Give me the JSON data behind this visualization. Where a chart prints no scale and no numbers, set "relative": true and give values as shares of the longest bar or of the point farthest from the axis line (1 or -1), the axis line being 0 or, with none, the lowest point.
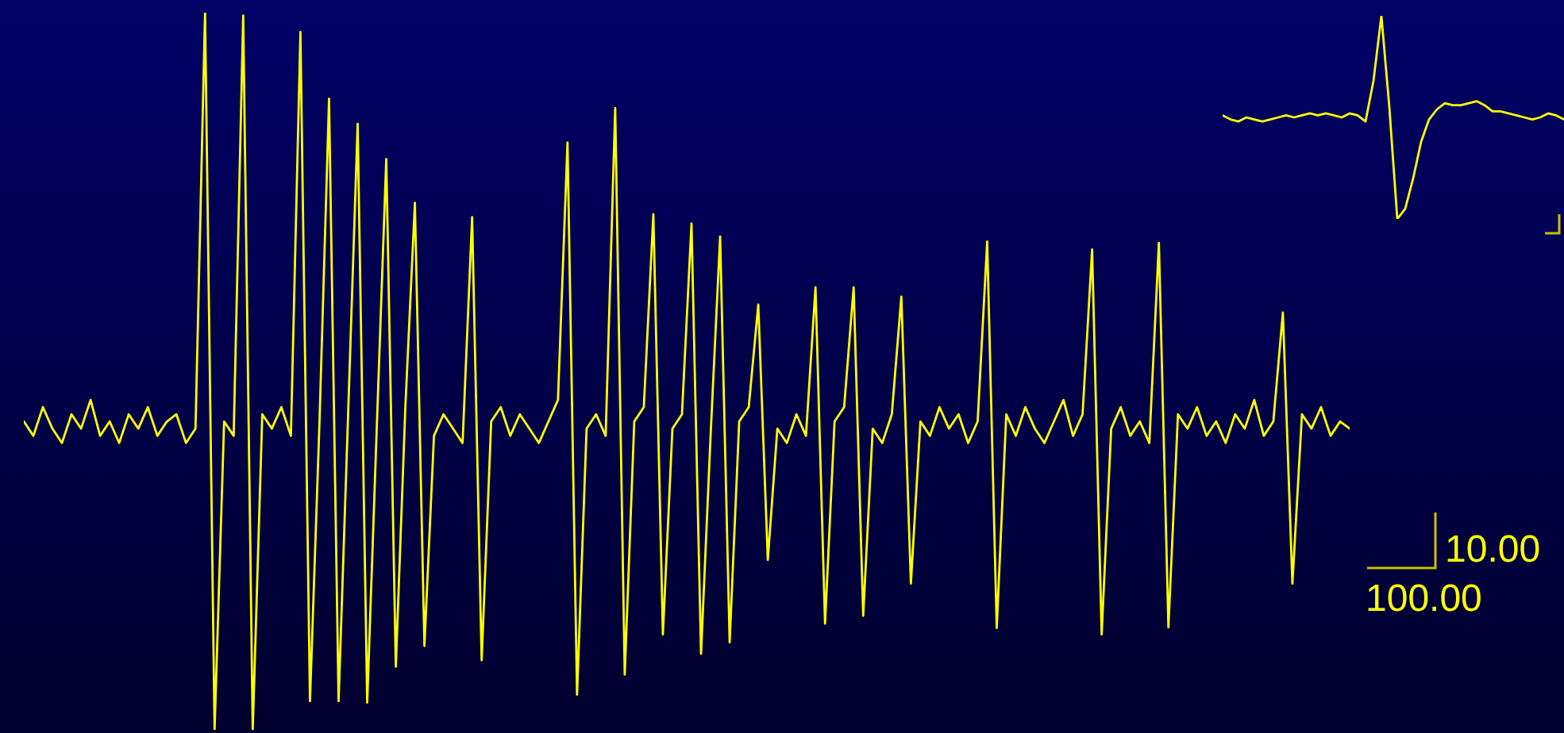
{
  "chart_data": [
    {
      "type": "line",
      "relative": true,
      "marker": "none",
      "color": "#ffff00",
      "categories": [
        null,
        null,
        null,
        null,
        null,
        null,
        null,
        null,
        null,
        null,
        null,
        null,
        null,
        null,
        null,
        null,
        null,
        null,
        null,
        null,
        null,
        null,
        null,
        null,
        null,
        null,
        null,
        null,
        null,
        null,
        null,
        null,
        null,
        null,
        null,
        null,
        null,
        null,
        null,
        null,
        null,
        null,
        null,
        null,
        null,
        null,
        null,
        null,
        null,
        null,
        null,
        null,
        null,
        null,
        null,
        null,
        null,
        null,
        null,
        null,
        null,
        null,
        null,
        null,
        null,
        null,
        null,
        null,
        null,
        null,
        null,
        null,
        null,
        null,
        null,
        null,
        null,
        null,
        null,
        null,
        null,
        null,
        null,
        null,
        null,
        null,
        null,
        null,
        null,
        null,
        null,
        null,
        null,
        null,
        null,
        null,
        null,
        null,
        null,
        null,
        null,
        null,
        null,
        null,
        null,
        null,
        null,
        null,
        null,
        null,
        null,
        null,
        null,
        null,
        null,
        null,
        null,
        null,
        null,
        null,
        null,
        null,
        null,
        null,
        null,
        null,
        null,
        null,
        null,
        null,
        null,
        null,
        null,
        null,
        null,
        null,
        null,
        null,
        null,
        null
      ],
      "values": [
        0.43,
        0.41,
        0.45,
        0.42,
        0.4,
        0.44,
        0.42,
        0.46,
        0.41,
        0.43,
        0.4,
        0.44,
        0.42,
        0.45,
        0.41,
        0.43,
        0.44,
        0.4,
        0.42,
        1.0,
        0,
        0.43,
        0.41,
        0.996,
        0,
        0.44,
        0.42,
        0.45,
        0.41,
        0.973,
        0.04,
        0.43,
        0.88,
        0.04,
        0.44,
        0.845,
        0.038,
        0.42,
        0.796,
        0.088,
        0.45,
        0.735,
        0.117,
        0.41,
        0.44,
        0.42,
        0.4,
        0.715,
        0.097,
        0.43,
        0.45,
        0.41,
        0.44,
        0.42,
        0.4,
        0.43,
        0.46,
        0.819,
        0.049,
        0.42,
        0.44,
        0.41,
        0.867,
        0.077,
        0.43,
        0.45,
        0.719,
        0.133,
        0.42,
        0.44,
        0.706,
        0.106,
        0.41,
        0.688,
        0.122,
        0.43,
        0.45,
        0.593,
        0.237,
        0.42,
        0.4,
        0.44,
        0.41,
        0.617,
        0.148,
        0.43,
        0.45,
        0.617,
        0.159,
        0.42,
        0.4,
        0.44,
        0.604,
        0.204,
        0.43,
        0.41,
        0.45,
        0.42,
        0.44,
        0.4,
        0.43,
        0.681,
        0.142,
        0.44,
        0.41,
        0.45,
        0.42,
        0.4,
        0.43,
        0.46,
        0.41,
        0.44,
        0.67,
        0.133,
        0.42,
        0.45,
        0.41,
        0.43,
        0.4,
        0.679,
        0.143,
        0.44,
        0.42,
        0.45,
        0.41,
        0.43,
        0.4,
        0.44,
        0.42,
        0.46,
        0.41,
        0.43,
        0.582,
        0.204,
        0.44,
        0.42,
        0.45,
        0.41,
        0.43,
        0.42
      ],
      "annotations": [
        "10.00",
        "100.00"
      ]
    },
    {
      "type": "line",
      "relative": true,
      "marker": "none",
      "color": "#ffff00",
      "categories": [
        null,
        null,
        null,
        null,
        null,
        null,
        null,
        null,
        null,
        null,
        null,
        null,
        null,
        null,
        null,
        null,
        null,
        null,
        null,
        null,
        null,
        null,
        null,
        null,
        null,
        null,
        null,
        null,
        null,
        null,
        null,
        null,
        null,
        null,
        null,
        null,
        null,
        null,
        null,
        null,
        null,
        null,
        null,
        null
      ],
      "values": [
        0.51,
        0.49,
        0.48,
        0.5,
        0.49,
        0.48,
        0.49,
        0.5,
        0.51,
        0.5,
        0.51,
        0.52,
        0.51,
        0.52,
        0.51,
        0.5,
        0.52,
        0.51,
        0.48,
        0.68,
        1.0,
        0.55,
        0,
        0.05,
        0.2,
        0.38,
        0.49,
        0.54,
        0.57,
        0.56,
        0.56,
        0.57,
        0.58,
        0.56,
        0.53,
        0.53,
        0.52,
        0.51,
        0.5,
        0.49,
        0.5,
        0.52,
        0.51,
        0.49
      ]
    }
  ]
}
